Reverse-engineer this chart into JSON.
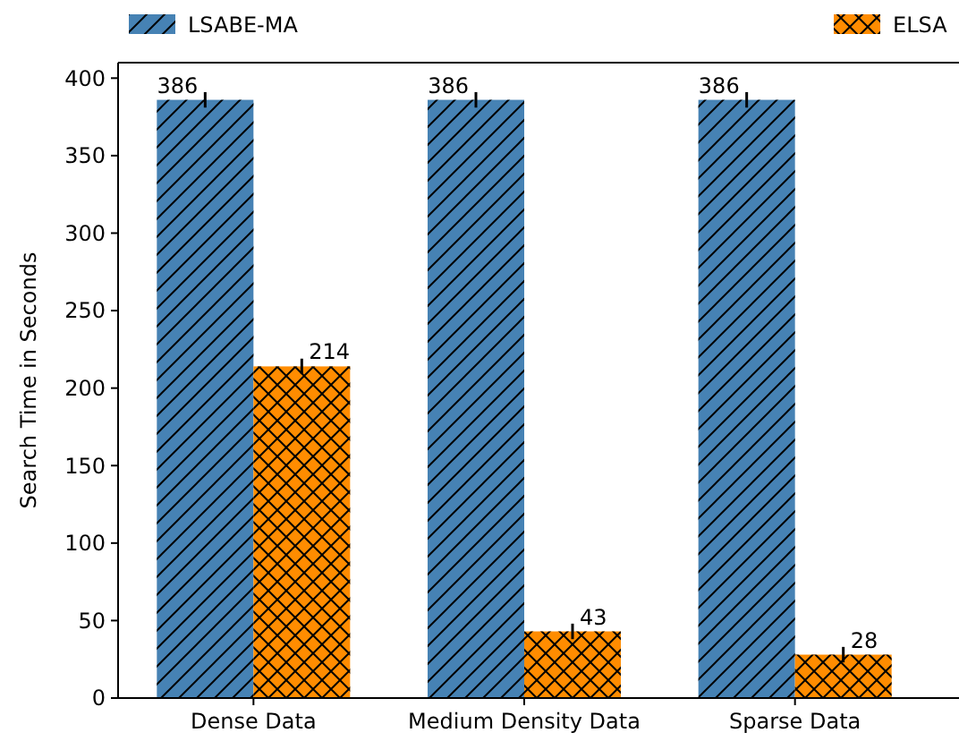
{
  "chart_data": {
    "type": "bar",
    "ylabel": "Search Time in Seconds",
    "categories": [
      "Dense Data",
      "Medium Density Data",
      "Sparse Data"
    ],
    "series": [
      {
        "name": "LSABE-MA",
        "color": "#4682b4",
        "values": [
          386,
          386,
          386
        ],
        "errors": [
          5,
          5,
          5
        ]
      },
      {
        "name": "ELSA",
        "color": "#ff8c00",
        "values": [
          214,
          43,
          28
        ],
        "errors": [
          5,
          5,
          5
        ]
      }
    ],
    "ylim": [
      0,
      410
    ],
    "yticks": [
      0,
      50,
      100,
      150,
      200,
      250,
      300,
      350,
      400
    ],
    "grid": false,
    "legend": "top",
    "data_labels": true
  }
}
